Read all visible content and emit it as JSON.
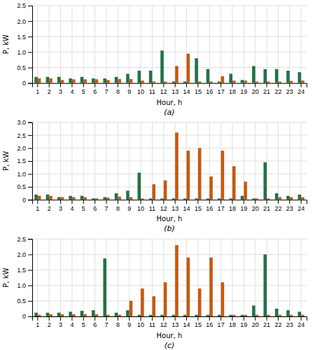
{
  "chart_data": [
    {
      "type": "bar",
      "title": "(a)",
      "xlabel": "Hour, h",
      "ylabel": "P, kW",
      "categories": [
        "1",
        "2",
        "3",
        "4",
        "5",
        "6",
        "7",
        "8",
        "9",
        "10",
        "11",
        "12",
        "13",
        "14",
        "15",
        "16",
        "17",
        "18",
        "19",
        "20",
        "21",
        "22",
        "23",
        "24"
      ],
      "series": [
        {
          "color": "#217346",
          "values": [
            0.2,
            0.2,
            0.2,
            0.15,
            0.2,
            0.15,
            0.15,
            0.2,
            0.3,
            0.4,
            0.4,
            1.05,
            0.05,
            0.05,
            0.8,
            0.45,
            0.05,
            0.3,
            0.1,
            0.55,
            0.45,
            0.45,
            0.4,
            0.35
          ]
        },
        {
          "color": "#C65911",
          "values": [
            0.15,
            0.15,
            0.1,
            0.12,
            0.12,
            0.12,
            0.1,
            0.13,
            0.13,
            0.08,
            0.05,
            0.05,
            0.55,
            0.95,
            0.05,
            0.05,
            0.22,
            0.08,
            0.08,
            0.05,
            0.05,
            0.05,
            0.07,
            0.08
          ]
        }
      ],
      "ylim": [
        0,
        2.5
      ],
      "yticks": [
        0,
        0.5,
        {
          "value": 1,
          "label": "1.0"
        },
        1.5,
        {
          "value": 2,
          "label": "2.0"
        },
        2.5
      ],
      "grid": true
    },
    {
      "type": "bar",
      "title": "(b)",
      "xlabel": "Hour, h",
      "ylabel": "P, kW",
      "categories": [
        "1",
        "2",
        "3",
        "4",
        "5",
        "6",
        "7",
        "8",
        "9",
        "10",
        "11",
        "12",
        "13",
        "14",
        "15",
        "16",
        "17",
        "18",
        "19",
        "20",
        "21",
        "22",
        "23",
        "24"
      ],
      "series": [
        {
          "color": "#217346",
          "values": [
            0.2,
            0.2,
            0.1,
            0.15,
            0.15,
            0.05,
            0.1,
            0.25,
            0.35,
            1.05,
            0.05,
            0.05,
            0.05,
            0.05,
            0.05,
            0.05,
            0.05,
            0.05,
            0.15,
            0.05,
            1.45,
            0.25,
            0.15,
            0.2
          ]
        },
        {
          "color": "#C65911",
          "values": [
            0.15,
            0.15,
            0.1,
            0.1,
            0.1,
            0.05,
            0.08,
            0.12,
            0.1,
            0.05,
            0.6,
            0.75,
            2.6,
            1.9,
            2.0,
            0.9,
            1.9,
            1.3,
            0.7,
            0.05,
            0.05,
            0.1,
            0.1,
            0.1
          ]
        }
      ],
      "ylim": [
        0,
        3
      ],
      "yticks": [
        0,
        0.5,
        {
          "value": 1,
          "label": "1.0"
        },
        1.5,
        {
          "value": 2,
          "label": "2.0"
        },
        2.5,
        {
          "value": 3,
          "label": "3.0"
        }
      ],
      "grid": true
    },
    {
      "type": "bar",
      "title": "(c)",
      "xlabel": "Hour, h",
      "ylabel": "P, kW",
      "categories": [
        "1",
        "2",
        "3",
        "4",
        "5",
        "6",
        "7",
        "8",
        "9",
        "10",
        "11",
        "12",
        "13",
        "14",
        "15",
        "16",
        "17",
        "18",
        "19",
        "20",
        "21",
        "22",
        "23",
        "24"
      ],
      "series": [
        {
          "color": "#217346",
          "values": [
            0.12,
            0.12,
            0.12,
            0.15,
            0.18,
            0.2,
            1.87,
            0.12,
            0.2,
            0.05,
            0.05,
            0.05,
            0.05,
            0.05,
            0.05,
            0.05,
            0.05,
            0.05,
            0.05,
            0.35,
            2.0,
            0.25,
            0.2,
            0.15
          ]
        },
        {
          "color": "#C65911",
          "values": [
            0.05,
            0.07,
            0.07,
            0.07,
            0.07,
            0.07,
            0.05,
            0.05,
            0.5,
            0.9,
            0.65,
            1.1,
            2.3,
            1.9,
            0.9,
            1.9,
            1.1,
            0.05,
            0.05,
            0.05,
            0.05,
            0.05,
            0.05,
            0.05
          ]
        }
      ],
      "ylim": [
        0,
        2.5
      ],
      "yticks": [
        0,
        0.5,
        {
          "value": 1,
          "label": "1.0"
        },
        1.5,
        {
          "value": 2,
          "label": "2.0"
        },
        2.5
      ],
      "grid": true
    }
  ]
}
